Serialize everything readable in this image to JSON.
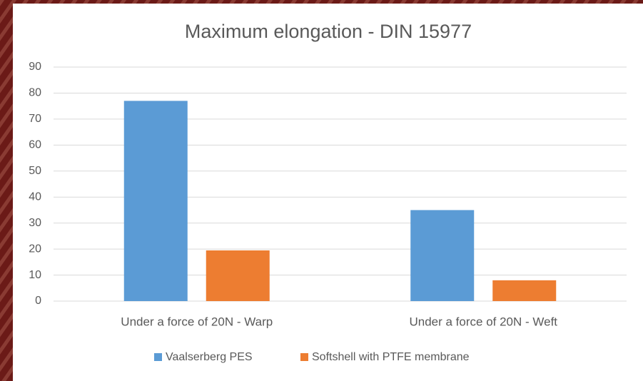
{
  "chart_data": {
    "type": "bar",
    "title": "Maximum elongation - DIN 15977",
    "categories": [
      "Under a force of 20N - Warp",
      "Under a force of 20N - Weft"
    ],
    "series": [
      {
        "name": "Vaalserberg PES",
        "color": "#5b9bd5",
        "values": [
          77,
          35
        ]
      },
      {
        "name": "Softshell with PTFE membrane",
        "color": "#ed7d31",
        "values": [
          19.5,
          8
        ]
      }
    ],
    "ylim": [
      0,
      90
    ],
    "yticks": [
      0,
      10,
      20,
      30,
      40,
      50,
      60,
      70,
      80,
      90
    ],
    "grid": true,
    "legend": "bottom"
  }
}
